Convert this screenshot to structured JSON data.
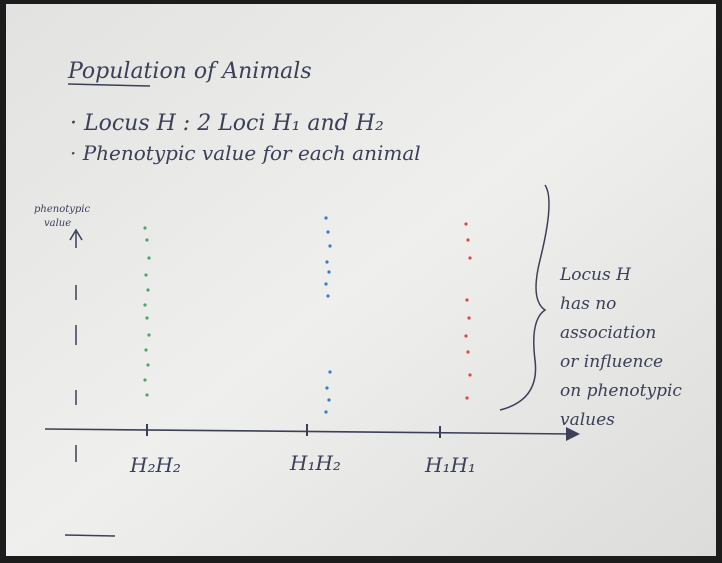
{
  "title": "Population of Animals",
  "bullets": [
    "· Locus H : 2 Loci H₁ and H₂",
    "· Phenotypic value for each animal"
  ],
  "y_axis_label": [
    "phenotypic",
    "value"
  ],
  "genotypes": [
    "H₂H₂",
    "H₁H₂",
    "H₁H₁"
  ],
  "note": [
    "Locus H",
    "has no",
    "association",
    "or influence",
    "on phenotypic",
    "values"
  ]
}
